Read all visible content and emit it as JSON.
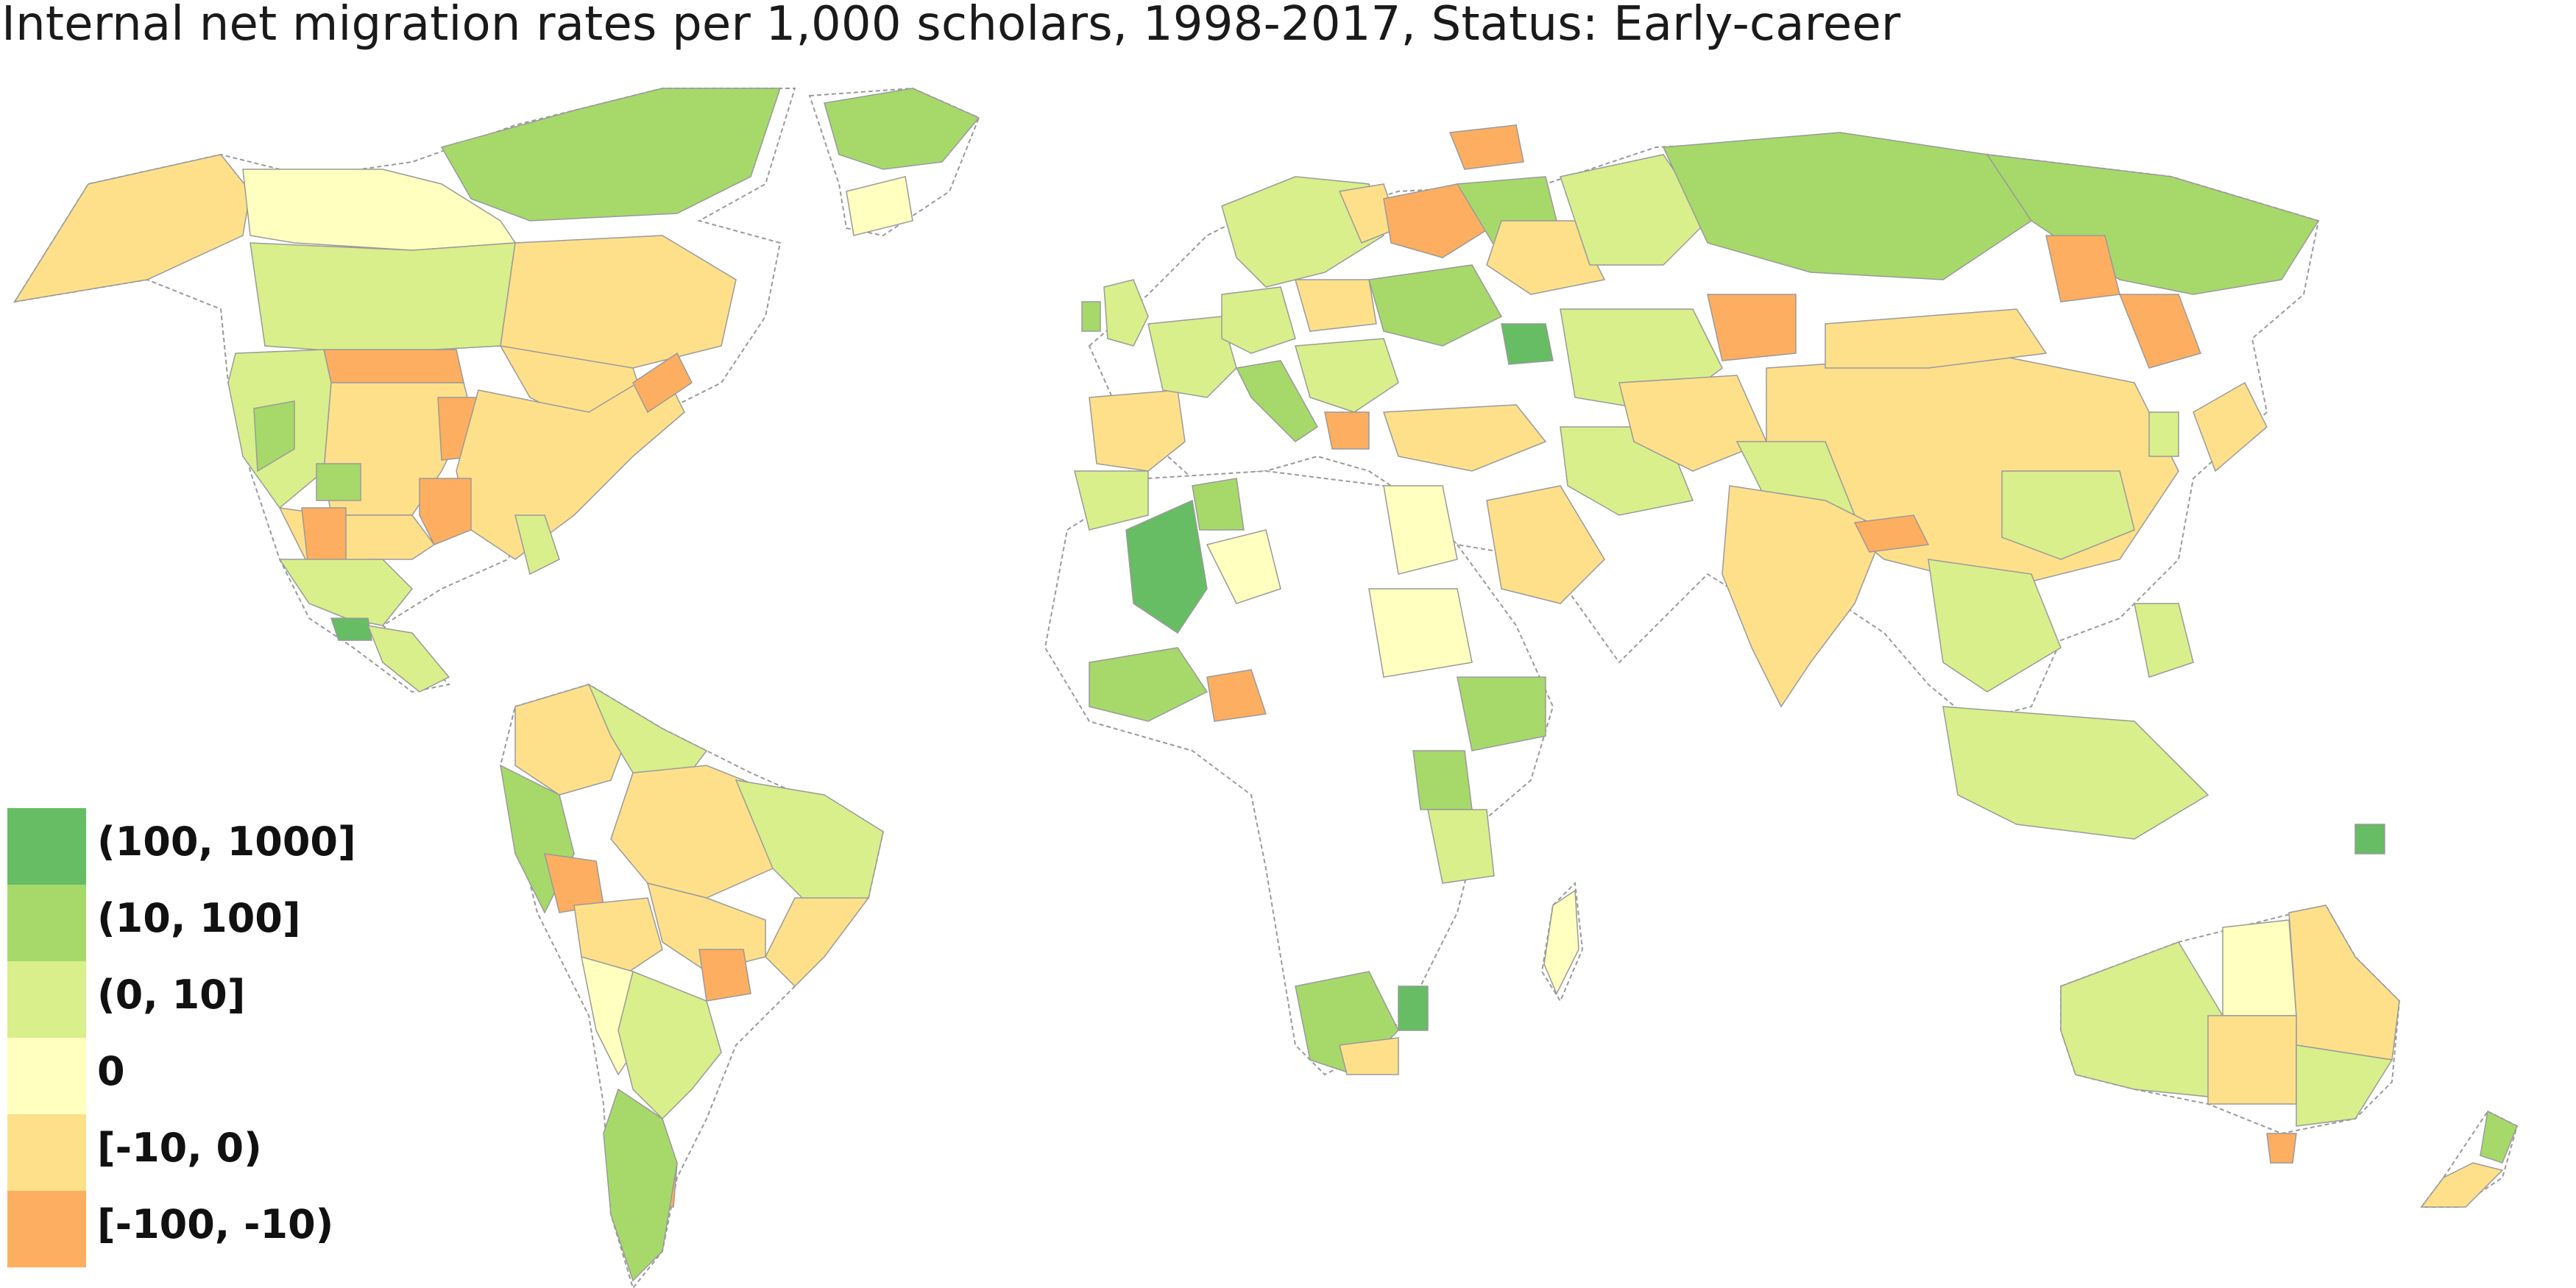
{
  "title": "Internal net migration rates per 1,000 scholars, 1998-2017, Status: Early-career",
  "legend": [
    {
      "label": "(100, 1000]",
      "color": "#66bd63"
    },
    {
      "label": "(10, 100]",
      "color": "#a6d96a"
    },
    {
      "label": "(0, 10]",
      "color": "#d9ef8b"
    },
    {
      "label": "0",
      "color": "#ffffbf"
    },
    {
      "label": "[-10, 0)",
      "color": "#fee08b"
    },
    {
      "label": "[-100, -10)",
      "color": "#fdae61"
    }
  ],
  "colors": {
    "no_data": "#ffffff",
    "border": "#9a9a9a"
  }
}
